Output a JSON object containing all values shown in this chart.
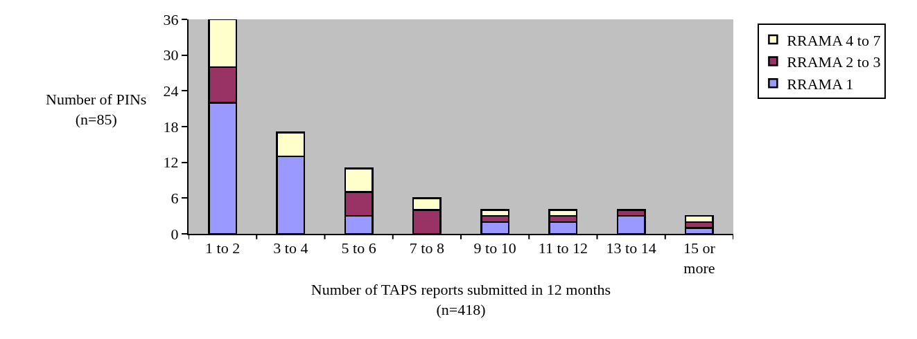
{
  "chart_data": {
    "type": "bar",
    "stacked": true,
    "xlabel": "Number of TAPS reports submitted in 12 months\n(n=418)",
    "ylabel": "Number of PINs\n(n=85)",
    "categories": [
      "1 to 2",
      "3 to 4",
      "5 to 6",
      "7 to 8",
      "9 to 10",
      "11 to 12",
      "13 to 14",
      "15 or more"
    ],
    "series": [
      {
        "name": "RRAMA 1",
        "color": "#9999ff",
        "values": [
          22,
          13,
          3,
          0,
          2,
          2,
          3,
          1
        ]
      },
      {
        "name": "RRAMA 2 to 3",
        "color": "#993366",
        "values": [
          6,
          0,
          4,
          4,
          1,
          1,
          1,
          1
        ]
      },
      {
        "name": "RRAMA 4 to 7",
        "color": "#ffffcc",
        "values": [
          8,
          4,
          4,
          2,
          1,
          1,
          0,
          1
        ]
      }
    ],
    "ylim": [
      0,
      36
    ],
    "yticks": [
      0,
      6,
      12,
      18,
      24,
      30,
      36
    ],
    "grid": false,
    "legend": "top right"
  }
}
